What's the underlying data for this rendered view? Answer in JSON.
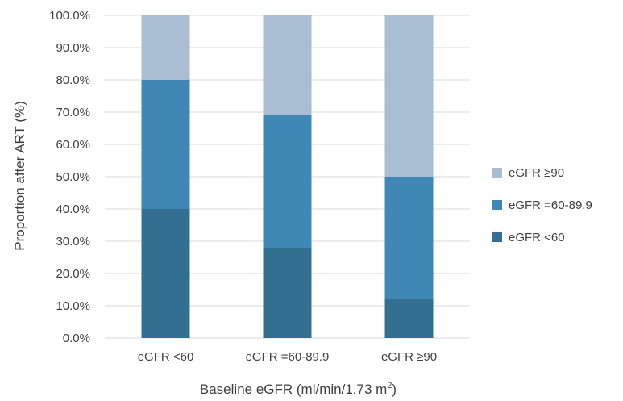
{
  "chart_data": {
    "type": "bar",
    "stacked": true,
    "categories": [
      "eGFR <60",
      "eGFR =60-89.9",
      "eGFR ≥90"
    ],
    "series": [
      {
        "name": "eGFR <60",
        "values": [
          40.0,
          28.0,
          12.0
        ],
        "color": "#336f91"
      },
      {
        "name": "eGFR =60-89.9",
        "values": [
          40.0,
          41.0,
          38.0
        ],
        "color": "#3f88b5"
      },
      {
        "name": "eGFR ≥90",
        "values": [
          20.0,
          31.0,
          50.0
        ],
        "color": "#a9bdd3"
      }
    ],
    "title": "",
    "xlabel": "Baseline eGFR (ml/min/1.73 m",
    "xlabel_superscript": "2",
    "xlabel_suffix": ")",
    "ylabel": "Proportion after ART (%)",
    "ylim": [
      0,
      100
    ],
    "yticks": [
      "0.0%",
      "10.0%",
      "20.0%",
      "30.0%",
      "40.0%",
      "50.0%",
      "60.0%",
      "70.0%",
      "80.0%",
      "90.0%",
      "100.0%"
    ],
    "grid": true,
    "legend_position": "right",
    "legend_order": [
      "eGFR ≥90",
      "eGFR =60-89.9",
      "eGFR <60"
    ]
  }
}
